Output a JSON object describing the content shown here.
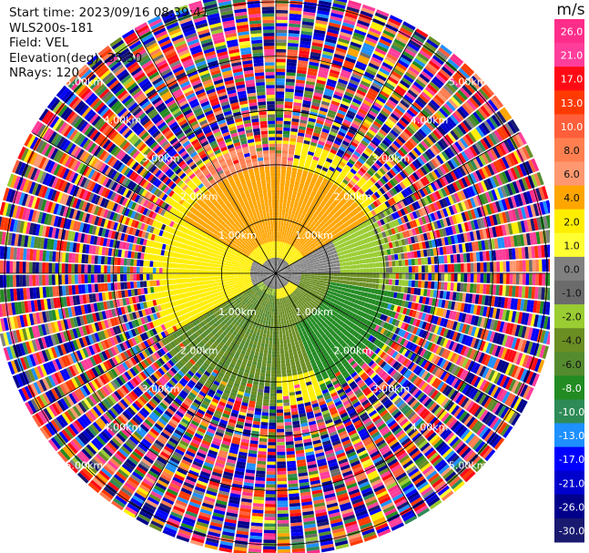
{
  "header": {
    "start_time": "Start time: 2023/09/16 08:39:41",
    "instrument": "WLS200s-181",
    "field": "Field: VEL",
    "elevation": "Elevation(deg): 35.30",
    "nrays": "NRays: 120"
  },
  "chart_data": {
    "type": "heatmap",
    "subtype": "ppi-polar",
    "title": "",
    "field": "VEL",
    "units": "m/s",
    "n_rays": 120,
    "elevation_deg": 35.3,
    "range_rings_km": [
      1,
      2,
      3,
      4,
      5
    ],
    "ring_labels": [
      "1.00km",
      "2.00km",
      "3.00km",
      "4.00km",
      "5.00km"
    ],
    "colorbar": {
      "label": "m/s",
      "ticks": [
        "26.0",
        "21.0",
        "17.0",
        "13.0",
        "10.0",
        "8.0",
        "6.0",
        "4.0",
        "2.0",
        "1.0",
        "0.0",
        "-1.0",
        "-2.0",
        "-4.0",
        "-6.0",
        "-8.0",
        "-10.0",
        "-13.0",
        "-17.0",
        "-21.0",
        "-26.0",
        "-30.0"
      ],
      "bins": [
        {
          "min": 26,
          "max": 30,
          "color": "#ff2d8a"
        },
        {
          "min": 21,
          "max": 26,
          "color": "#ff3e9b"
        },
        {
          "min": 17,
          "max": 21,
          "color": "#ff0a14"
        },
        {
          "min": 13,
          "max": 17,
          "color": "#ff3a00"
        },
        {
          "min": 10,
          "max": 13,
          "color": "#ff5f3a"
        },
        {
          "min": 8,
          "max": 10,
          "color": "#ff7f50"
        },
        {
          "min": 6,
          "max": 8,
          "color": "#ff9870"
        },
        {
          "min": 4,
          "max": 6,
          "color": "#ffa500"
        },
        {
          "min": 2,
          "max": 4,
          "color": "#ffee00"
        },
        {
          "min": 1,
          "max": 2,
          "color": "#ffff33"
        },
        {
          "min": 0,
          "max": 1,
          "color": "#808080"
        },
        {
          "min": -1,
          "max": 0,
          "color": "#6b6b6b"
        },
        {
          "min": -2,
          "max": -1,
          "color": "#9acd32"
        },
        {
          "min": -4,
          "max": -2,
          "color": "#6b8e23"
        },
        {
          "min": -6,
          "max": -4,
          "color": "#558b2f"
        },
        {
          "min": -8,
          "max": -6,
          "color": "#228b22"
        },
        {
          "min": -10,
          "max": -8,
          "color": "#2e8b57"
        },
        {
          "min": -13,
          "max": -10,
          "color": "#1e90ff"
        },
        {
          "min": -17,
          "max": -13,
          "color": "#0000ff"
        },
        {
          "min": -21,
          "max": -17,
          "color": "#0000cd"
        },
        {
          "min": -26,
          "max": -21,
          "color": "#00008b"
        },
        {
          "min": -30,
          "max": -26,
          "color": "#191970"
        }
      ]
    },
    "velocity_sectors": [
      {
        "azimuth_deg": [
          240,
          300
        ],
        "range_km": [
          0.5,
          1.2
        ],
        "value_ms": 2.5
      },
      {
        "azimuth_deg": [
          300,
          60
        ],
        "range_km": [
          0.6,
          2.0
        ],
        "value_ms": 4.5
      },
      {
        "azimuth_deg": [
          320,
          10
        ],
        "range_km": [
          2.0,
          2.4
        ],
        "value_ms": 8.0
      },
      {
        "azimuth_deg": [
          60,
          120
        ],
        "range_km": [
          0.3,
          1.2
        ],
        "value_ms": 0.5
      },
      {
        "azimuth_deg": [
          90,
          180
        ],
        "range_km": [
          0.5,
          1.9
        ],
        "value_ms": -2.5
      },
      {
        "azimuth_deg": [
          100,
          160
        ],
        "range_km": [
          1.0,
          2.4
        ],
        "value_ms": -7.0
      },
      {
        "azimuth_deg": [
          180,
          240
        ],
        "range_km": [
          0.4,
          2.4
        ],
        "value_ms": -4.0
      },
      {
        "azimuth_deg": [
          0,
          360
        ],
        "range_km": [
          2.5,
          5.2
        ],
        "value_ms": "noise"
      }
    ]
  }
}
